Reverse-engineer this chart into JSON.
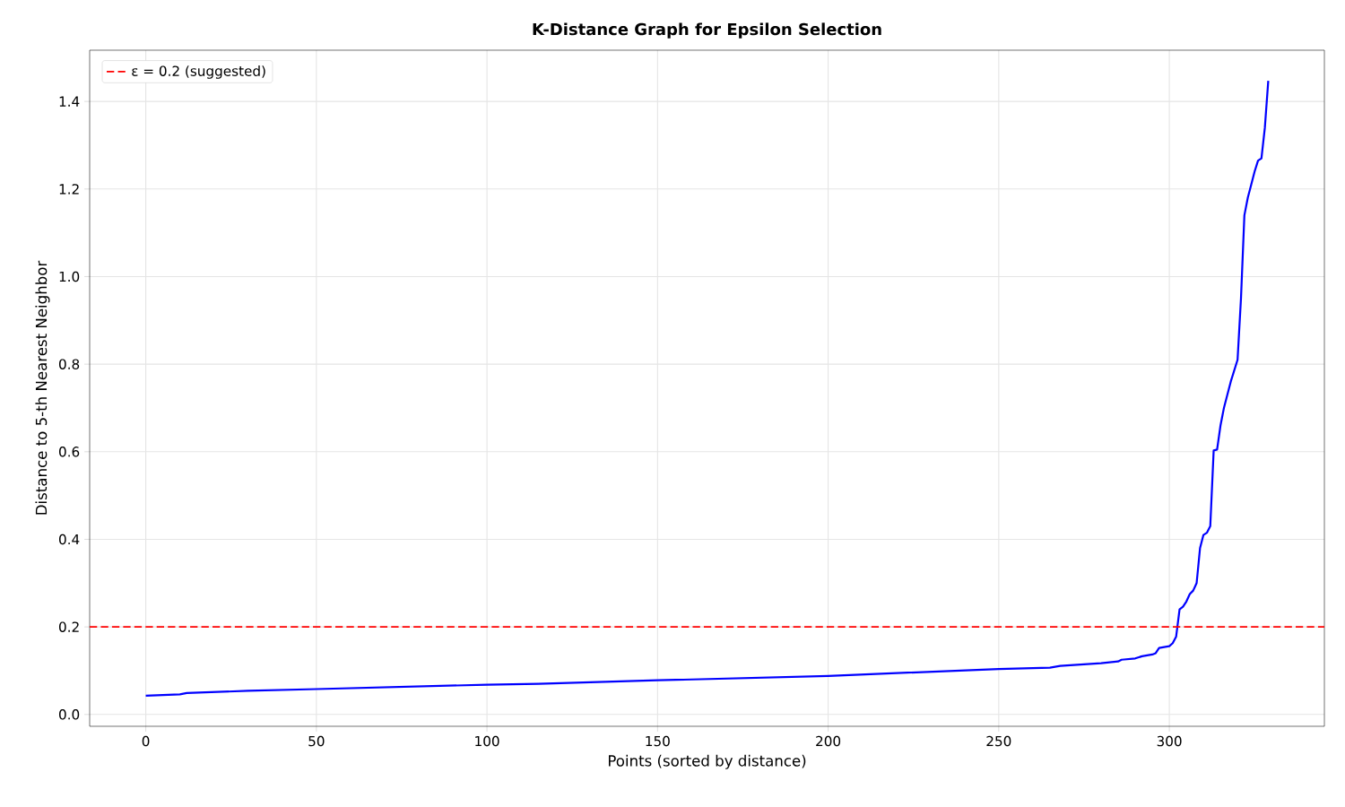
{
  "chart_data": {
    "type": "line",
    "title": "K-Distance Graph for Epsilon Selection",
    "xlabel": "Points (sorted by distance)",
    "ylabel": "Distance to 5-th Nearest Neighbor",
    "x": [
      0,
      10,
      12,
      30,
      50,
      100,
      115,
      150,
      200,
      250,
      265,
      268,
      280,
      285,
      286,
      290,
      292,
      295,
      296,
      297,
      300,
      301,
      302,
      303,
      304,
      305,
      306,
      307,
      308,
      309,
      310,
      311,
      312,
      313,
      314,
      315,
      316,
      318,
      320,
      321,
      322,
      323,
      324,
      325,
      326,
      327,
      328,
      329
    ],
    "series": [
      {
        "color": "#0000ff",
        "values": [
          0.043,
          0.046,
          0.049,
          0.054,
          0.058,
          0.068,
          0.07,
          0.078,
          0.088,
          0.104,
          0.107,
          0.111,
          0.117,
          0.121,
          0.125,
          0.128,
          0.133,
          0.137,
          0.14,
          0.152,
          0.156,
          0.163,
          0.178,
          0.24,
          0.246,
          0.258,
          0.275,
          0.283,
          0.3,
          0.38,
          0.41,
          0.415,
          0.43,
          0.603,
          0.605,
          0.66,
          0.7,
          0.76,
          0.81,
          0.95,
          1.14,
          1.18,
          1.21,
          1.24,
          1.265,
          1.27,
          1.34,
          1.447
        ]
      }
    ],
    "ref_lines": [
      {
        "axis": "y",
        "value": 0.2,
        "label": "ε = 0.2 (suggested)",
        "color": "#ff0000",
        "line_style": "dashed"
      }
    ],
    "xlim": [
      -16.45,
      345.45
    ],
    "ylim": [
      -0.027,
      1.517
    ],
    "xticks": [
      0,
      50,
      100,
      150,
      200,
      250,
      300
    ],
    "yticks": [
      {
        "value": 0,
        "label": "0.0"
      },
      {
        "value": 0.2,
        "label": "0.2"
      },
      {
        "value": 0.4,
        "label": "0.4"
      },
      {
        "value": 0.6,
        "label": "0.6"
      },
      {
        "value": 0.8,
        "label": "0.8"
      },
      {
        "value": 1.0,
        "label": "1.0"
      },
      {
        "value": 1.2,
        "label": "1.2"
      },
      {
        "value": 1.4,
        "label": "1.4"
      }
    ],
    "grid": true,
    "legend": "top left"
  }
}
